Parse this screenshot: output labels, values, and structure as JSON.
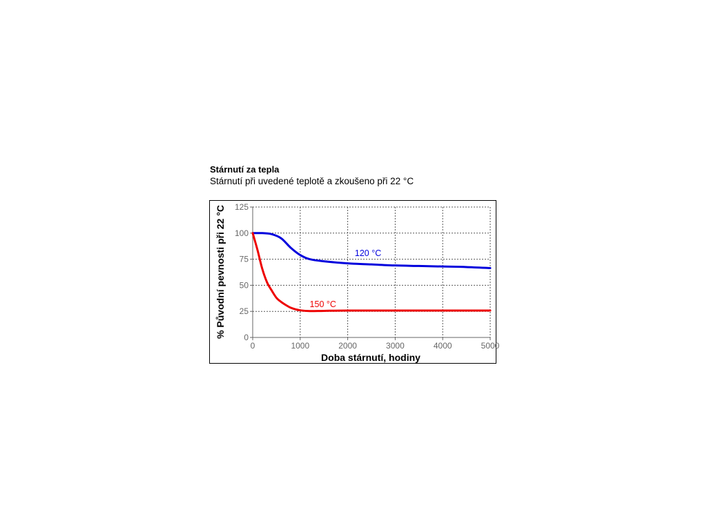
{
  "header": {
    "title": "Stárnutí za tepla",
    "subtitle": "Stárnutí při uvedené teplotě a zkoušeno při 22 °C"
  },
  "chart_data": {
    "type": "line",
    "xlabel": "Doba stárnutí, hodiny",
    "ylabel": "% Původní pevnosti při 22 °C",
    "xlim": [
      0,
      5000
    ],
    "ylim": [
      0,
      125
    ],
    "x_ticks": [
      0,
      1000,
      2000,
      3000,
      4000,
      5000
    ],
    "y_ticks": [
      0,
      25,
      50,
      75,
      100,
      125
    ],
    "x_tick_labels": [
      "0",
      "1000",
      "2000",
      "3000",
      "4000",
      "5000"
    ],
    "y_tick_labels": [
      "0",
      "25",
      "50",
      "75",
      "100",
      "125"
    ],
    "grid": true,
    "series": [
      {
        "name": "120 °C",
        "color": "#0000dd",
        "x": [
          0,
          200,
          400,
          600,
          800,
          1000,
          1200,
          1500,
          2000,
          2500,
          3000,
          3500,
          4000,
          4500,
          5000
        ],
        "y": [
          100,
          100,
          99,
          95,
          86,
          79,
          75,
          73,
          71,
          70,
          69,
          68.5,
          68,
          67.5,
          66.5
        ]
      },
      {
        "name": "150 °C",
        "color": "#ee0000",
        "x": [
          0,
          100,
          200,
          300,
          400,
          500,
          600,
          700,
          800,
          900,
          1000,
          1200,
          1500,
          2000,
          3000,
          4000,
          5000
        ],
        "y": [
          100,
          84,
          66,
          53,
          45,
          38,
          34,
          31,
          28.5,
          27,
          26,
          25.3,
          25.5,
          25.8,
          25.8,
          25.8,
          25.8
        ]
      }
    ]
  }
}
